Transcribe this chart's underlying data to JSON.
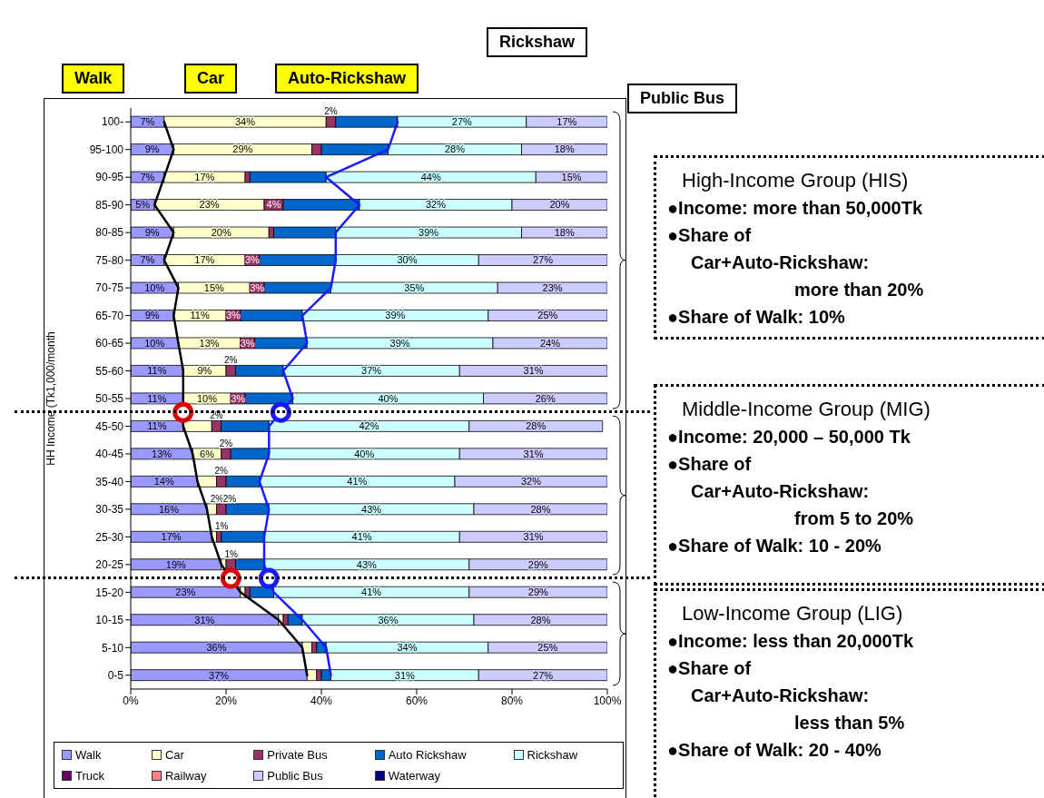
{
  "chart_data": {
    "type": "bar",
    "orientation": "horizontal",
    "stacked": true,
    "ylabel": "HH Income (Tk1,000/month",
    "categories": [
      "100-",
      "95-100",
      "90-95",
      "85-90",
      "80-85",
      "75-80",
      "70-75",
      "65-70",
      "60-65",
      "55-60",
      "50-55",
      "45-50",
      "40-45",
      "35-40",
      "30-35",
      "25-30",
      "20-25",
      "15-20",
      "10-15",
      "5-10",
      "0-5"
    ],
    "series": [
      {
        "name": "Walk",
        "color": "#9999ff",
        "values": [
          7,
          9,
          7,
          5,
          9,
          7,
          10,
          9,
          10,
          11,
          11,
          11,
          13,
          14,
          16,
          17,
          19,
          23,
          31,
          36,
          37
        ],
        "value_labels": [
          "7%",
          "9%",
          "7%",
          "5%",
          "9%",
          "7%",
          "10%",
          "9%",
          "10%",
          "11%",
          "11%",
          "11%",
          "13%",
          "14%",
          "16%",
          "17%",
          "19%",
          "23%",
          "31%",
          "36%",
          "37%"
        ]
      },
      {
        "name": "Car",
        "color": "#ffffcc",
        "values": [
          34,
          29,
          17,
          23,
          20,
          17,
          15,
          11,
          13,
          9,
          10,
          6,
          6,
          4,
          2,
          1,
          1,
          1,
          1,
          2,
          2
        ],
        "value_labels": [
          "34%",
          "29%",
          "17%",
          "23%",
          "20%",
          "17%",
          "15%",
          "11%",
          "13%",
          "9%",
          "10%",
          null,
          "6%",
          null,
          "2%",
          "1%",
          "1%",
          null,
          null,
          null,
          null
        ]
      },
      {
        "name": "Private Bus",
        "color": "#993366",
        "values": [
          2,
          2,
          1,
          4,
          1,
          3,
          3,
          3,
          3,
          2,
          3,
          2,
          2,
          2,
          2,
          1,
          2,
          1,
          1,
          1,
          1
        ],
        "value_labels": [
          "2%",
          null,
          null,
          "4%",
          null,
          "3%",
          "3%",
          "3%",
          "3%",
          "2%",
          "3%",
          "2%",
          "2%",
          "2%",
          "2%",
          null,
          null,
          null,
          null,
          null,
          null
        ]
      },
      {
        "name": "Auto Rickshaw",
        "color": "#0066cc",
        "values": [
          13,
          14,
          16,
          16,
          13,
          16,
          14,
          13,
          11,
          10,
          10,
          10,
          8,
          7,
          9,
          9,
          6,
          5,
          3,
          2,
          2
        ]
      },
      {
        "name": "Rickshaw",
        "color": "#ccffff",
        "values": [
          27,
          28,
          44,
          32,
          39,
          30,
          35,
          39,
          39,
          37,
          40,
          42,
          40,
          41,
          43,
          41,
          43,
          41,
          36,
          34,
          31
        ],
        "value_labels": [
          "27%",
          "28%",
          "44%",
          "32%",
          "39%",
          "30%",
          "35%",
          "39%",
          "39%",
          "37%",
          "40%",
          "42%",
          "40%",
          "41%",
          "43%",
          "41%",
          "43%",
          "41%",
          "36%",
          "34%",
          "31%"
        ]
      },
      {
        "name": "Truck",
        "color": "#660066",
        "values": [
          0,
          0,
          0,
          0,
          0,
          0,
          0,
          0,
          0,
          0,
          0,
          0,
          0,
          0,
          0,
          0,
          0,
          0,
          0,
          0,
          0
        ]
      },
      {
        "name": "Railway",
        "color": "#ff8080",
        "values": [
          0,
          0,
          0,
          0,
          0,
          0,
          0,
          0,
          0,
          0,
          0,
          0,
          0,
          0,
          0,
          0,
          0,
          0,
          0,
          0,
          0
        ]
      },
      {
        "name": "Public Bus",
        "color": "#ccccff",
        "values": [
          17,
          18,
          15,
          20,
          18,
          27,
          23,
          25,
          24,
          31,
          26,
          28,
          31,
          32,
          28,
          31,
          29,
          29,
          28,
          25,
          27
        ],
        "value_labels": [
          "17%",
          "18%",
          "15%",
          "20%",
          "18%",
          "27%",
          "23%",
          "25%",
          "24%",
          "31%",
          "26%",
          "28%",
          "31%",
          "32%",
          "28%",
          "31%",
          "29%",
          "29%",
          "28%",
          "25%",
          "27%"
        ]
      },
      {
        "name": "Waterway",
        "color": "#000080",
        "values": [
          0,
          0,
          0,
          0,
          0,
          0,
          0,
          0,
          0,
          0,
          0,
          0,
          0,
          0,
          0,
          0,
          0,
          0,
          0,
          0,
          0
        ]
      }
    ],
    "xlim": [
      0,
      100
    ],
    "xticks": [
      {
        "value": 0,
        "label": "0%"
      },
      {
        "value": 20,
        "label": "20%"
      },
      {
        "value": 40,
        "label": "40%"
      },
      {
        "value": 60,
        "label": "60%"
      },
      {
        "value": 80,
        "label": "80%"
      },
      {
        "value": 100,
        "label": "100%"
      }
    ],
    "grid": false,
    "legend": "bottom",
    "annotations": [
      "Walk",
      "Car",
      "Auto-Rickshaw",
      "Rickshaw",
      "Public Bus",
      "High-Income Group (HIS)",
      "●Income: more than 50,000Tk",
      "●Share of",
      "Car+Auto-Rickshaw:",
      "more than 20%",
      "●Share of Walk: 10%",
      "Middle-Income Group (MIG)",
      "●Income: 20,000 – 50,000 Tk",
      "●Share of",
      "Car+Auto-Rickshaw:",
      "from 5 to 20%",
      "●Share of Walk: 10 - 20%",
      "Low-Income Group (LIG)",
      "●Income: less than 20,000Tk",
      "●Share of",
      "Car+Auto-Rickshaw:",
      "less than 5%",
      "●Share of Walk: 20 - 40%"
    ]
  }
}
